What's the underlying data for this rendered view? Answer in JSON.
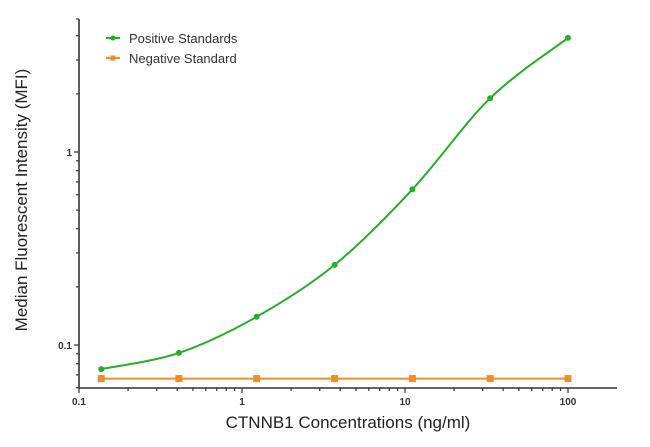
{
  "chart_data": {
    "type": "line",
    "title": "",
    "xlabel": "CTNNB1 Concentrations (ng/ml)",
    "ylabel": "Median  Fluorescent Intensity  (MFI)",
    "xscale": "log",
    "yscale": "log",
    "xlim": [
      0.1,
      200
    ],
    "ylim": [
      0.06,
      5
    ],
    "x_ticks": [
      "0.1",
      "1",
      "10",
      "100"
    ],
    "y_ticks": [
      "0.1",
      "1"
    ],
    "grid": false,
    "legend_position": "top-left",
    "series": [
      {
        "name": "Positive Standards",
        "color": "#22b026",
        "marker": "circle",
        "fit": "4PL curve",
        "x": [
          0.137,
          0.41,
          1.23,
          3.7,
          11.1,
          33.3,
          100
        ],
        "values": [
          0.075,
          0.091,
          0.14,
          0.26,
          0.64,
          1.9,
          3.9
        ]
      },
      {
        "name": "Negative Standard",
        "color": "#f08c2a",
        "marker": "square",
        "x": [
          0.137,
          0.41,
          1.23,
          3.7,
          11.1,
          33.3,
          100
        ],
        "values": [
          0.067,
          0.067,
          0.067,
          0.067,
          0.067,
          0.067,
          0.067
        ]
      }
    ]
  }
}
